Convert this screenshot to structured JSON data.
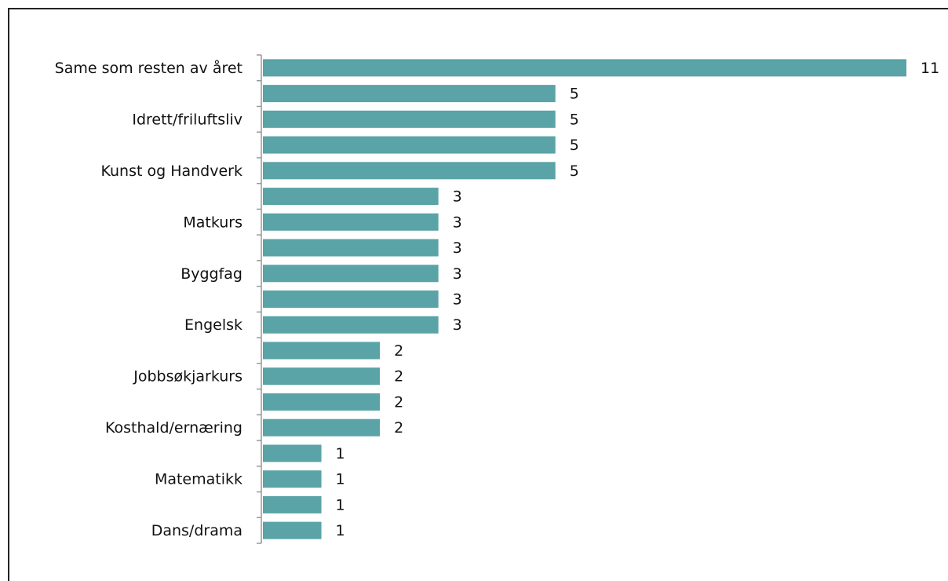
{
  "chart_data": {
    "type": "bar",
    "orientation": "horizontal",
    "categories": [
      "Same som resten av året",
      null,
      "Idrett/friluftsliv",
      null,
      "Kunst og Handverk",
      null,
      "Matkurs",
      null,
      "Byggfag",
      null,
      "Engelsk",
      null,
      "Jobbsøkjarkurs",
      null,
      "Kosthald/ernæring",
      null,
      "Matematikk",
      null,
      "Dans/drama"
    ],
    "values": [
      11,
      5,
      5,
      5,
      5,
      3,
      3,
      3,
      3,
      3,
      3,
      2,
      2,
      2,
      2,
      1,
      1,
      1,
      1
    ],
    "color": "#5aa3a6"
  }
}
